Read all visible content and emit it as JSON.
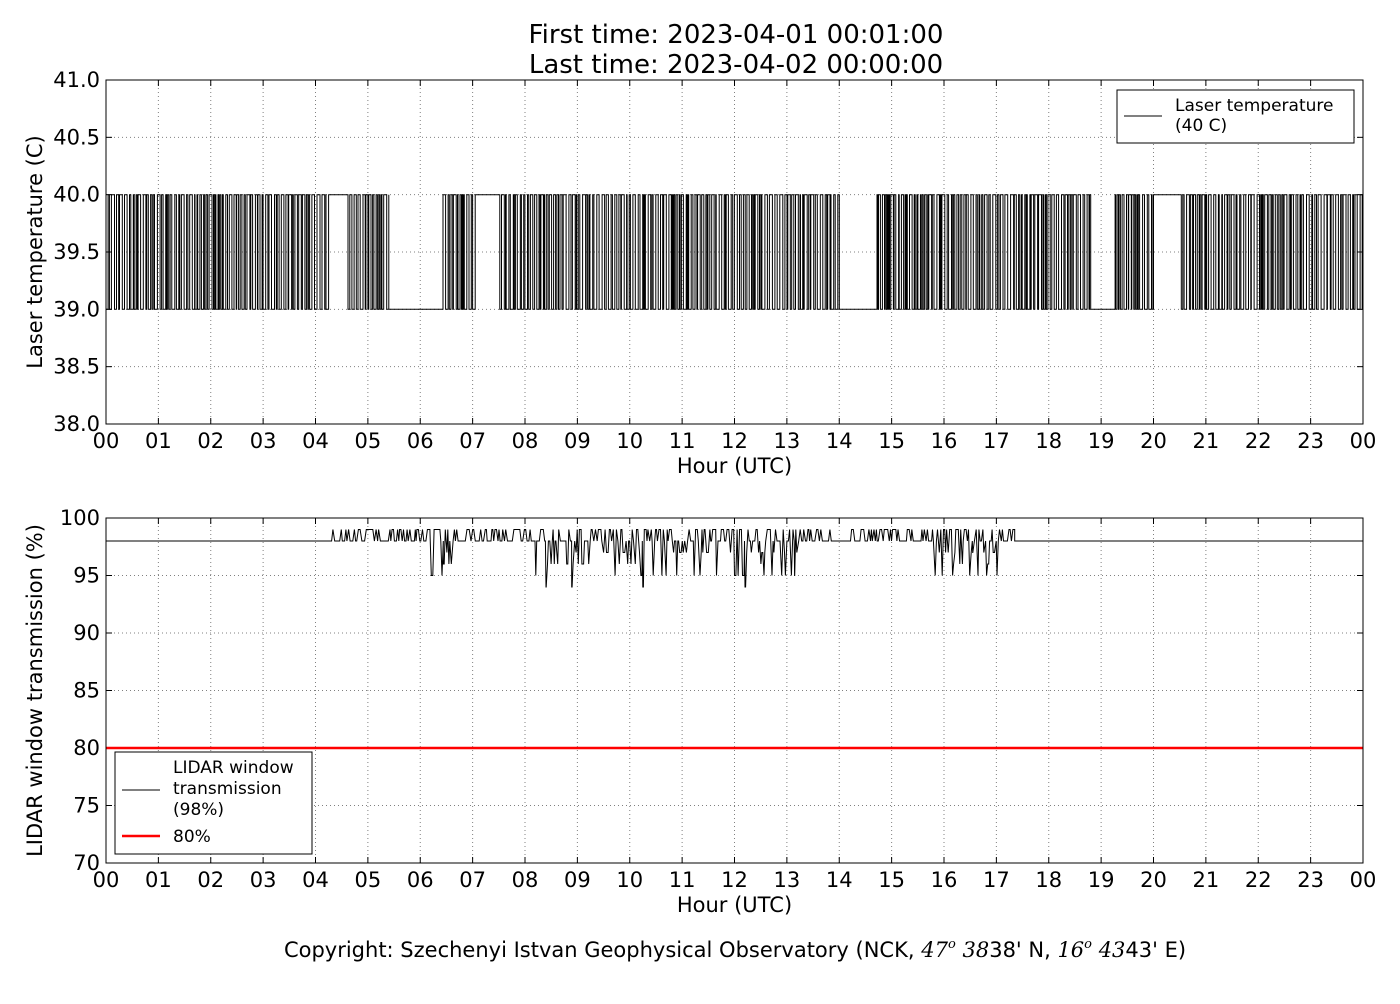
{
  "header": {
    "title_line1": "First time: 2023-04-01 00:01:00",
    "title_line2": "Last time: 2023-04-02 00:00:00"
  },
  "footer": {
    "copyright_prefix": "Copyright: Szechenyi Istvan Geophysical Observatory (NCK, ",
    "lat_deg": "47",
    "deg_mark": "o",
    "lat_min": "38' N, ",
    "lon_deg": "16",
    "lon_min": "43' E)"
  },
  "colors": {
    "series": "#000000",
    "threshold": "#ff0000",
    "grid": "#808080"
  },
  "chart_data": [
    {
      "type": "line",
      "xlabel": "Hour (UTC)",
      "ylabel": "Laser temperature (C)",
      "xlim": [
        0,
        24
      ],
      "ylim": [
        38.0,
        41.0
      ],
      "x_ticks": [
        "00",
        "01",
        "02",
        "03",
        "04",
        "05",
        "06",
        "07",
        "08",
        "09",
        "10",
        "11",
        "12",
        "13",
        "14",
        "15",
        "16",
        "17",
        "18",
        "19",
        "20",
        "21",
        "22",
        "23",
        "00"
      ],
      "y_ticks": [
        "38.0",
        "38.5",
        "39.0",
        "39.5",
        "40.0",
        "40.5",
        "41.0"
      ],
      "grid": true,
      "legend_position": "top-right",
      "legend": [
        {
          "name": "Laser temperature\n(40 C)",
          "line1": "Laser temperature",
          "line2": "(40 C)",
          "color": "#000000"
        }
      ],
      "series": [
        {
          "name": "Laser temperature (40 C)",
          "step": true,
          "values_between": [
            39.0,
            40.0
          ],
          "segments": [
            {
              "from": 0.0,
              "to": 0.2,
              "mode": "switching"
            },
            {
              "from": 0.2,
              "to": 1.7,
              "mode": "switching"
            },
            {
              "from": 1.7,
              "to": 3.0,
              "mode": "switching"
            },
            {
              "from": 3.0,
              "to": 4.2,
              "mode": "switching"
            },
            {
              "from": 4.25,
              "to": 4.6,
              "mode": "constant",
              "value": 40.0
            },
            {
              "from": 4.6,
              "to": 5.4,
              "mode": "switching"
            },
            {
              "from": 5.4,
              "to": 6.4,
              "mode": "constant",
              "value": 39.0
            },
            {
              "from": 6.4,
              "to": 7.0,
              "mode": "switching"
            },
            {
              "from": 7.05,
              "to": 7.5,
              "mode": "constant",
              "value": 40.0
            },
            {
              "from": 7.5,
              "to": 14.0,
              "mode": "switching"
            },
            {
              "from": 14.05,
              "to": 14.7,
              "mode": "constant",
              "value": 39.0
            },
            {
              "from": 14.7,
              "to": 18.8,
              "mode": "switching"
            },
            {
              "from": 18.8,
              "to": 19.25,
              "mode": "constant",
              "value": 39.0
            },
            {
              "from": 19.25,
              "to": 20.0,
              "mode": "switching"
            },
            {
              "from": 20.0,
              "to": 20.5,
              "mode": "constant",
              "value": 40.0
            },
            {
              "from": 20.5,
              "to": 24.0,
              "mode": "switching"
            }
          ]
        }
      ]
    },
    {
      "type": "line",
      "xlabel": "Hour (UTC)",
      "ylabel": "LIDAR window transmission (%)",
      "xlim": [
        0,
        24
      ],
      "ylim": [
        70,
        100
      ],
      "x_ticks": [
        "00",
        "01",
        "02",
        "03",
        "04",
        "05",
        "06",
        "07",
        "08",
        "09",
        "10",
        "11",
        "12",
        "13",
        "14",
        "15",
        "16",
        "17",
        "18",
        "19",
        "20",
        "21",
        "22",
        "23",
        "00"
      ],
      "y_ticks": [
        "70",
        "75",
        "80",
        "85",
        "90",
        "95",
        "100"
      ],
      "grid": true,
      "legend_position": "bottom-left",
      "legend": [
        {
          "name": "LIDAR window\ntransmission\n(98%)",
          "line1": "LIDAR window",
          "line2": "transmission",
          "line3": "(98%)",
          "color": "#000000"
        },
        {
          "name": "80%",
          "line1": "80%",
          "color": "#ff0000"
        }
      ],
      "series": [
        {
          "name": "LIDAR window transmission (98%)",
          "baseline": 98,
          "active_from": 4.25,
          "active_to": 17.35,
          "quiet_gap": [
            13.95,
            14.2
          ],
          "max": 99,
          "min": 94,
          "notable_dips": [
            {
              "x": 6.45,
              "y": 96
            },
            {
              "x": 8.4,
              "y": 94
            },
            {
              "x": 8.9,
              "y": 94
            },
            {
              "x": 10.25,
              "y": 94
            },
            {
              "x": 12.2,
              "y": 94
            },
            {
              "x": 13.15,
              "y": 95
            },
            {
              "x": 16.55,
              "y": 97
            }
          ]
        },
        {
          "name": "80%",
          "constant": 80,
          "color": "#ff0000"
        }
      ]
    }
  ]
}
